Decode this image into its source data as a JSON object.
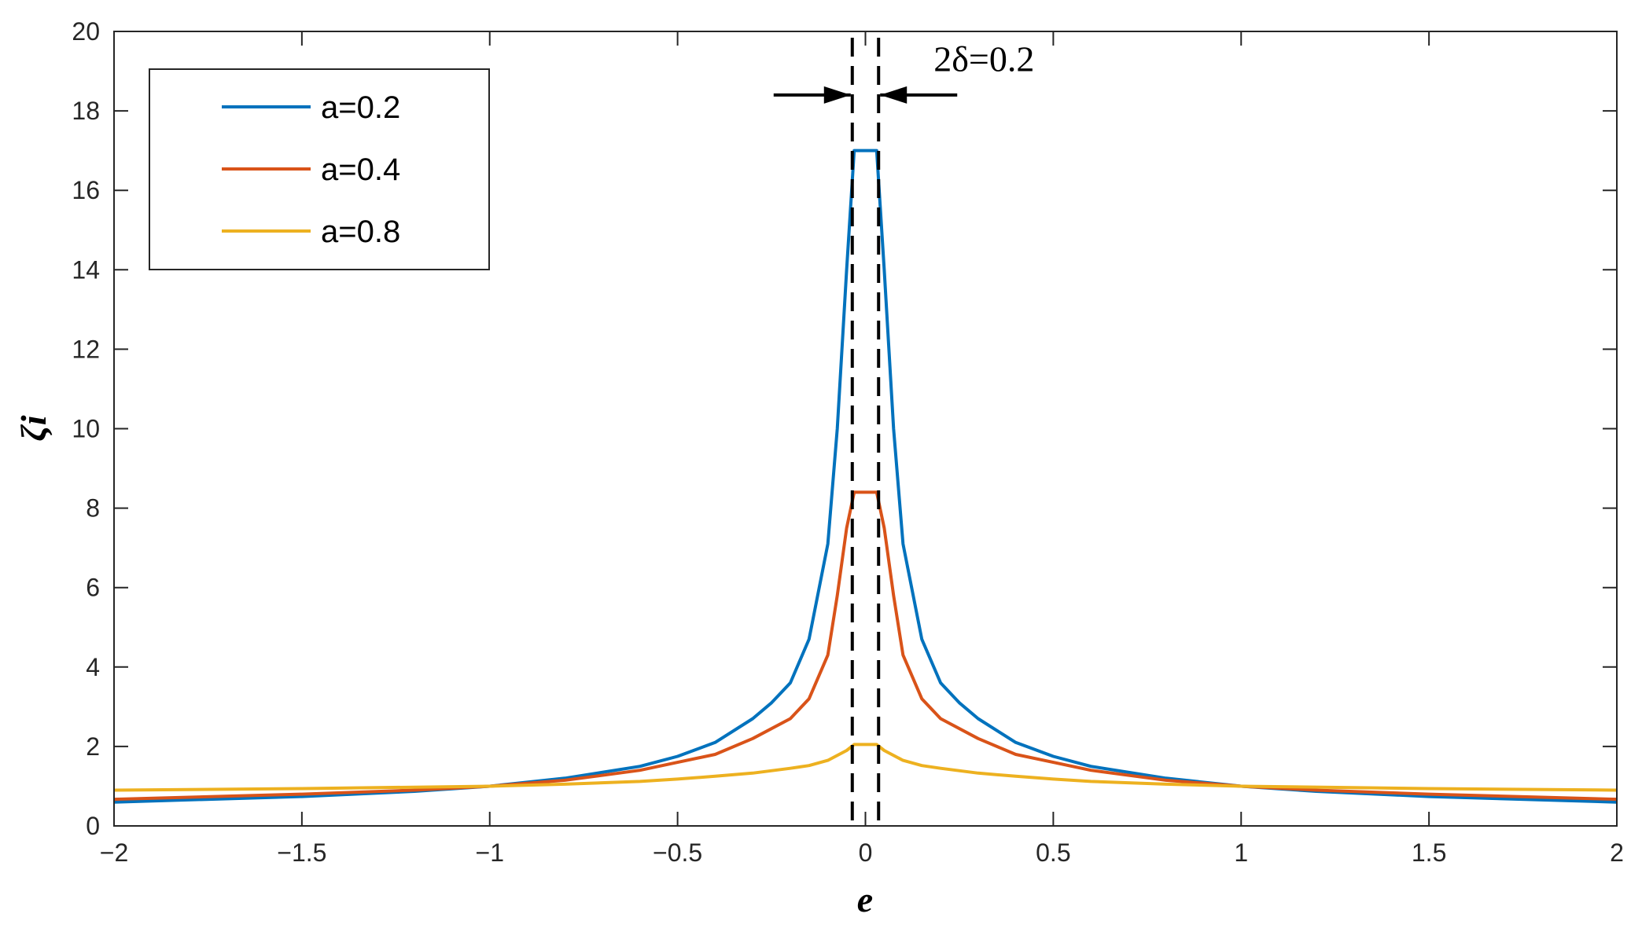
{
  "chart_data": {
    "type": "line",
    "title": "",
    "xlabel": "e",
    "ylabel": "ζi",
    "xlim": [
      -2,
      2
    ],
    "ylim": [
      0,
      20
    ],
    "x_ticks": [
      -2,
      -1.5,
      -1,
      -0.5,
      0,
      0.5,
      1,
      1.5,
      2
    ],
    "x_tick_labels": [
      "−2",
      "−1.5",
      "−1",
      "−0.5",
      "0",
      "0.5",
      "1",
      "1.5",
      "2"
    ],
    "y_ticks": [
      0,
      2,
      4,
      6,
      8,
      10,
      12,
      14,
      16,
      18,
      20
    ],
    "y_tick_labels": [
      "0",
      "2",
      "4",
      "6",
      "8",
      "10",
      "12",
      "14",
      "16",
      "18",
      "20"
    ],
    "grid": false,
    "legend_position": "top-left",
    "annotation": {
      "text": "2δ=0.2",
      "dashed_lines_x": [
        -0.035,
        0.035
      ]
    },
    "series": [
      {
        "name": "a=0.2",
        "color": "#0072BD",
        "points": [
          [
            -2,
            0.6
          ],
          [
            -1.5,
            0.74
          ],
          [
            -1.2,
            0.87
          ],
          [
            -1,
            1.0
          ],
          [
            -0.8,
            1.2
          ],
          [
            -0.6,
            1.5
          ],
          [
            -0.5,
            1.75
          ],
          [
            -0.4,
            2.1
          ],
          [
            -0.3,
            2.7
          ],
          [
            -0.25,
            3.1
          ],
          [
            -0.2,
            3.6
          ],
          [
            -0.15,
            4.7
          ],
          [
            -0.1,
            7.1
          ],
          [
            -0.075,
            10.0
          ],
          [
            -0.05,
            14.0
          ],
          [
            -0.03,
            17.0
          ],
          [
            0.03,
            17.0
          ],
          [
            0.05,
            14.0
          ],
          [
            0.075,
            10.0
          ],
          [
            0.1,
            7.1
          ],
          [
            0.15,
            4.7
          ],
          [
            0.2,
            3.6
          ],
          [
            0.25,
            3.1
          ],
          [
            0.3,
            2.7
          ],
          [
            0.4,
            2.1
          ],
          [
            0.5,
            1.75
          ],
          [
            0.6,
            1.5
          ],
          [
            0.8,
            1.2
          ],
          [
            1,
            1.0
          ],
          [
            1.2,
            0.87
          ],
          [
            1.5,
            0.74
          ],
          [
            2,
            0.6
          ]
        ]
      },
      {
        "name": "a=0.4",
        "color": "#D95319",
        "points": [
          [
            -2,
            0.67
          ],
          [
            -1.5,
            0.8
          ],
          [
            -1.2,
            0.9
          ],
          [
            -1,
            1.0
          ],
          [
            -0.8,
            1.15
          ],
          [
            -0.6,
            1.4
          ],
          [
            -0.5,
            1.6
          ],
          [
            -0.4,
            1.8
          ],
          [
            -0.3,
            2.2
          ],
          [
            -0.2,
            2.7
          ],
          [
            -0.15,
            3.2
          ],
          [
            -0.1,
            4.3
          ],
          [
            -0.075,
            5.8
          ],
          [
            -0.05,
            7.5
          ],
          [
            -0.03,
            8.4
          ],
          [
            0.03,
            8.4
          ],
          [
            0.05,
            7.5
          ],
          [
            0.075,
            5.8
          ],
          [
            0.1,
            4.3
          ],
          [
            0.15,
            3.2
          ],
          [
            0.2,
            2.7
          ],
          [
            0.3,
            2.2
          ],
          [
            0.4,
            1.8
          ],
          [
            0.5,
            1.6
          ],
          [
            0.6,
            1.4
          ],
          [
            0.8,
            1.15
          ],
          [
            1,
            1.0
          ],
          [
            1.2,
            0.9
          ],
          [
            1.5,
            0.8
          ],
          [
            2,
            0.67
          ]
        ]
      },
      {
        "name": "a=0.8",
        "color": "#EDB120",
        "points": [
          [
            -2,
            0.9
          ],
          [
            -1.5,
            0.94
          ],
          [
            -1,
            1.0
          ],
          [
            -0.8,
            1.05
          ],
          [
            -0.6,
            1.12
          ],
          [
            -0.5,
            1.18
          ],
          [
            -0.4,
            1.25
          ],
          [
            -0.3,
            1.33
          ],
          [
            -0.2,
            1.45
          ],
          [
            -0.15,
            1.52
          ],
          [
            -0.1,
            1.65
          ],
          [
            -0.05,
            1.9
          ],
          [
            -0.03,
            2.05
          ],
          [
            0.03,
            2.05
          ],
          [
            0.05,
            1.9
          ],
          [
            0.1,
            1.65
          ],
          [
            0.15,
            1.52
          ],
          [
            0.2,
            1.45
          ],
          [
            0.3,
            1.33
          ],
          [
            0.4,
            1.25
          ],
          [
            0.5,
            1.18
          ],
          [
            0.6,
            1.12
          ],
          [
            0.8,
            1.05
          ],
          [
            1,
            1.0
          ],
          [
            1.5,
            0.94
          ],
          [
            2,
            0.9
          ]
        ]
      }
    ]
  }
}
